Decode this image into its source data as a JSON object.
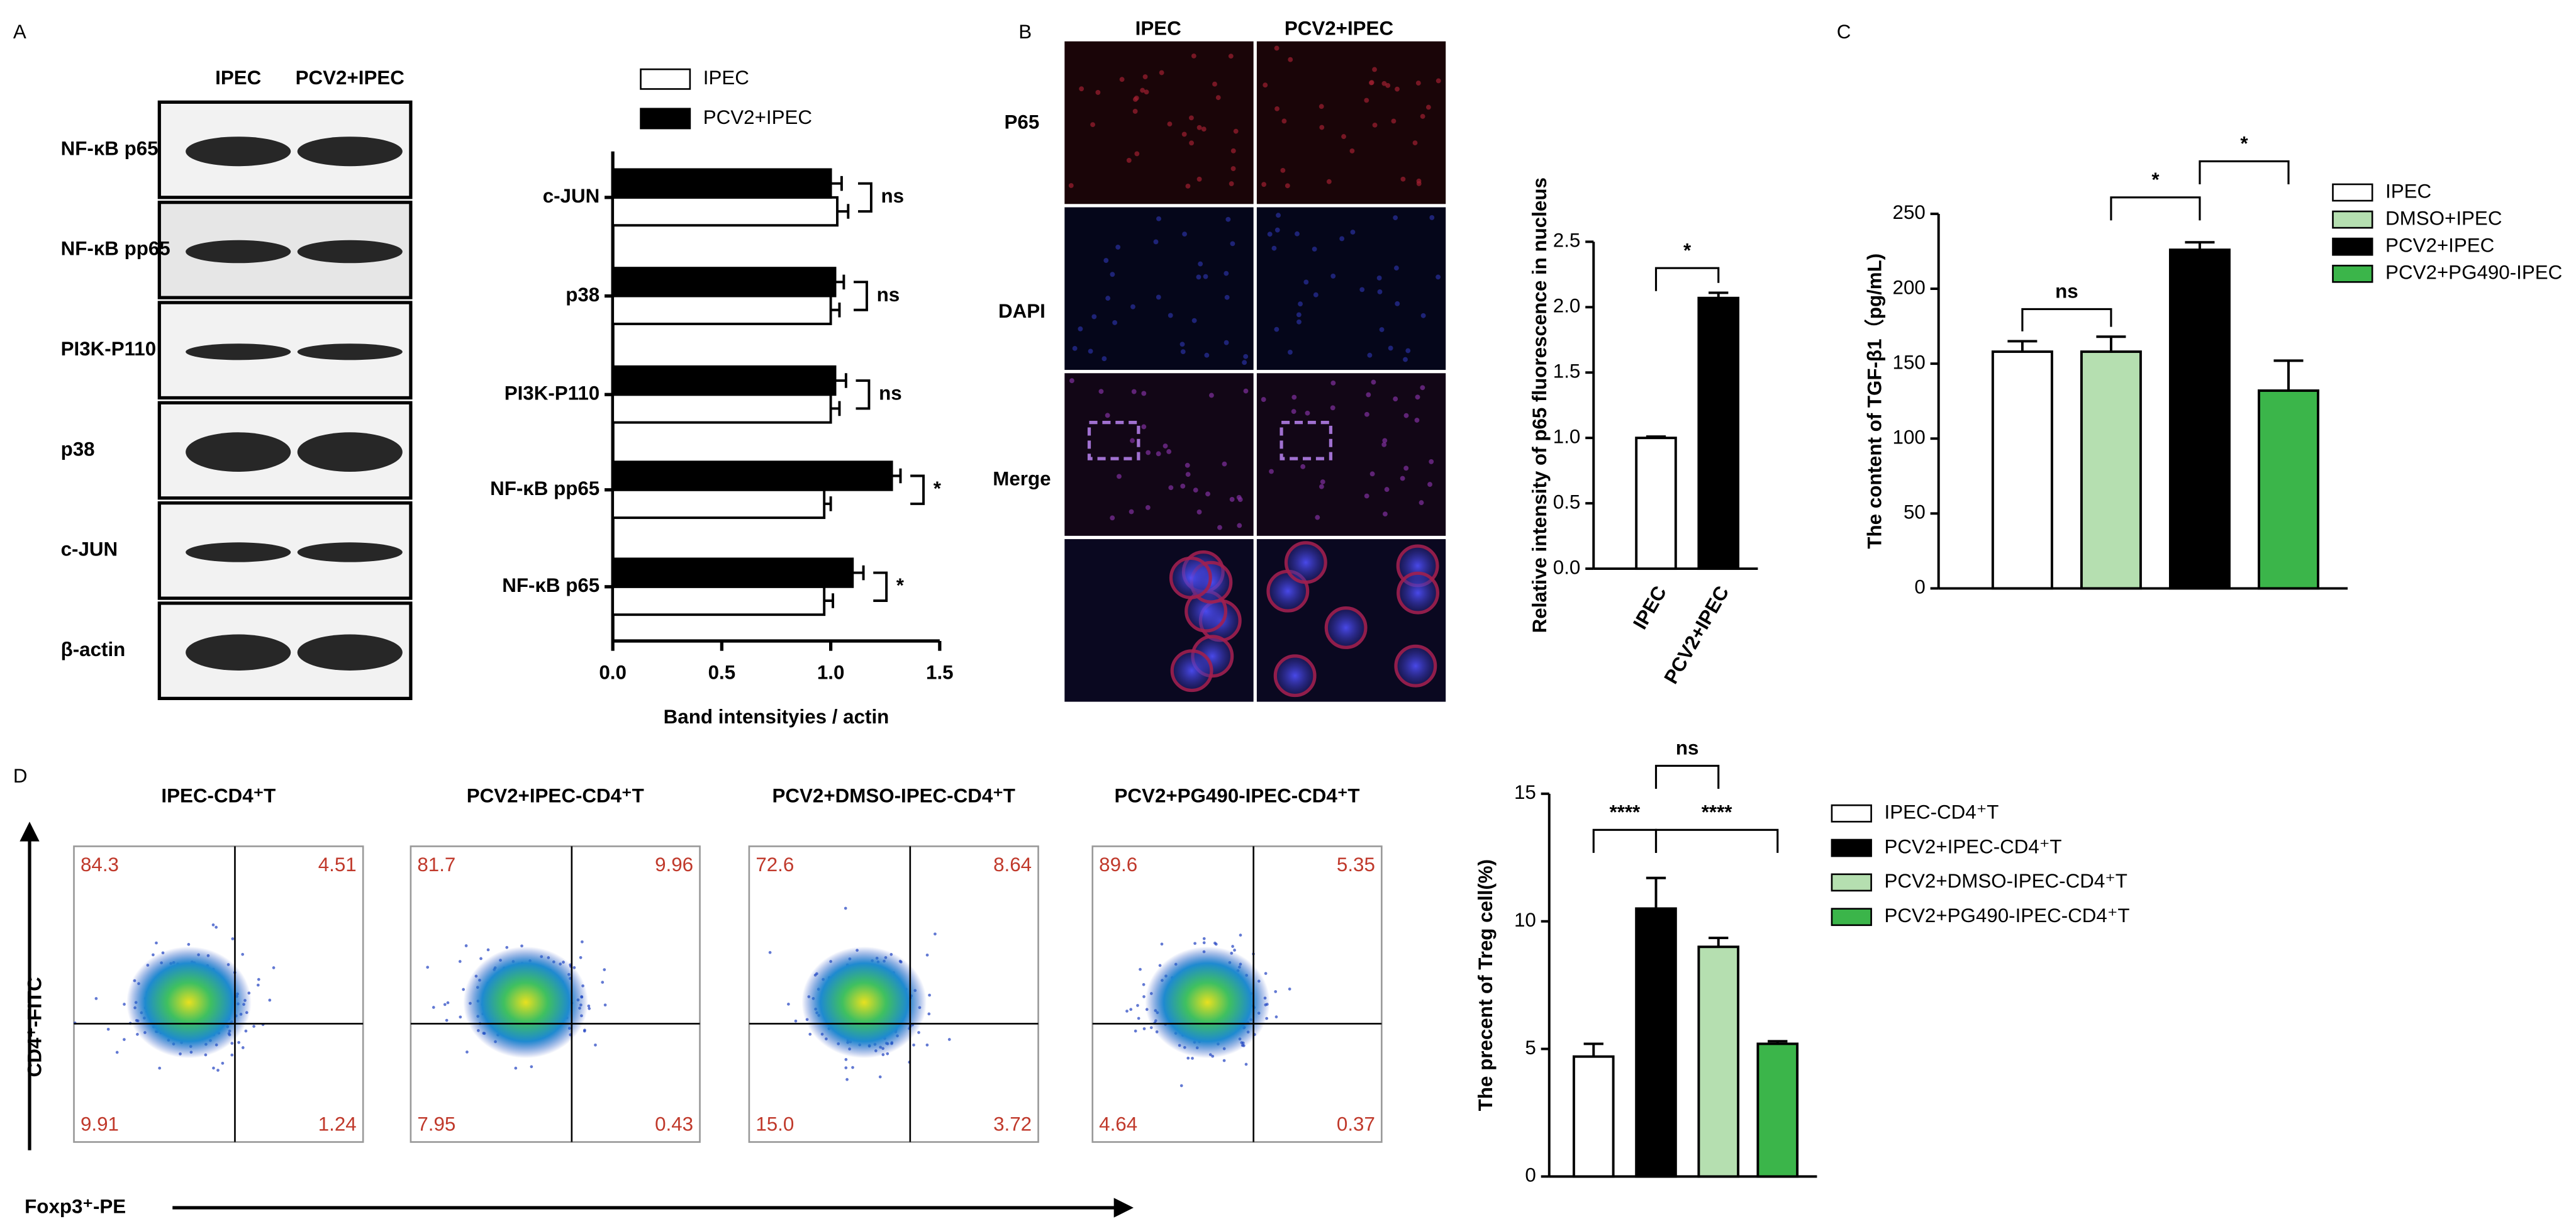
{
  "figure": {
    "panel_labels": [
      "A",
      "B",
      "C",
      "D"
    ],
    "blot": {
      "columns": [
        "IPEC",
        "PCV2+IPEC"
      ],
      "rows": [
        "NF-κB p65",
        "NF-κB pp65",
        "PI3K-P110",
        "p38",
        "c-JUN",
        "β-actin"
      ]
    },
    "micro": {
      "columns": [
        "IPEC",
        "PCV2+IPEC"
      ],
      "rows": [
        "P65",
        "DAPI",
        "Merge"
      ]
    },
    "flow": {
      "ylabel": "CD4⁺-FITC",
      "xlabel": "Foxp3⁺-PE",
      "plots": [
        {
          "title": "IPEC-CD4⁺T",
          "quadrants": [
            "84.3",
            "4.51",
            "9.91",
            "1.24"
          ]
        },
        {
          "title": "PCV2+IPEC-CD4⁺T",
          "quadrants": [
            "81.7",
            "9.96",
            "7.95",
            "0.43"
          ]
        },
        {
          "title": "PCV2+DMSO-IPEC-CD4⁺T",
          "quadrants": [
            "72.6",
            "8.64",
            "15.0",
            "3.72"
          ]
        },
        {
          "title": "PCV2+PG490-IPEC-CD4⁺T",
          "quadrants": [
            "89.6",
            "5.35",
            "4.64",
            "0.37"
          ]
        }
      ]
    }
  },
  "chart_data": [
    {
      "type": "hbar",
      "categories": [
        "c-JUN",
        "p38",
        "PI3K-P110",
        "NF-κB pp65",
        "NF-κB p65"
      ],
      "series": [
        {
          "name": "IPEC",
          "color": "#ffffff",
          "values": [
            1.03,
            1.0,
            1.0,
            0.97,
            0.97
          ],
          "errors": [
            0.05,
            0.04,
            0.04,
            0.03,
            0.04
          ]
        },
        {
          "name": "PCV2+IPEC",
          "color": "#000000",
          "values": [
            1.0,
            1.02,
            1.02,
            1.28,
            1.1
          ],
          "errors": [
            0.05,
            0.04,
            0.05,
            0.04,
            0.05
          ]
        }
      ],
      "xlim": [
        0,
        1.5
      ],
      "xticks": [
        {
          "value": 0,
          "label": "0.0"
        },
        0.5,
        {
          "value": 1,
          "label": "1.0"
        },
        1.5
      ],
      "xlabel": "Band intensityies / actin",
      "annotations": [
        "ns",
        "ns",
        "ns",
        "*",
        "*"
      ]
    },
    {
      "type": "bar",
      "categories": [
        "IPEC",
        "PCV2+IPEC"
      ],
      "values": [
        1.0,
        2.07
      ],
      "errors": [
        0.01,
        0.04
      ],
      "colors": [
        "#ffffff",
        "#000000"
      ],
      "ylim": [
        0,
        2.5
      ],
      "yticks": [
        {
          "value": 0,
          "label": "0.0"
        },
        0.5,
        {
          "value": 1,
          "label": "1.0"
        },
        1.5,
        {
          "value": 2,
          "label": "2.0"
        },
        2.5
      ],
      "ylabel": "Relative intensity of p65 fluorescence in nucleus",
      "annotations": [
        "*"
      ]
    },
    {
      "type": "bar",
      "series": [
        {
          "name": "IPEC",
          "color": "#ffffff",
          "values": [
            158
          ],
          "errors": [
            7
          ]
        },
        {
          "name": "DMSO+IPEC",
          "color": "#b5dfb0",
          "values": [
            158
          ],
          "errors": [
            10
          ]
        },
        {
          "name": "PCV2+IPEC",
          "color": "#000000",
          "values": [
            226
          ],
          "errors": [
            5
          ]
        },
        {
          "name": "PCV2+PG490-IPEC",
          "color": "#3bb54a",
          "values": [
            132
          ],
          "errors": [
            20
          ]
        }
      ],
      "ylim": [
        0,
        250
      ],
      "yticks": [
        0,
        50,
        100,
        150,
        200,
        250
      ],
      "ylabel": "The content of TGF-β1（pg/mL)",
      "annotations": [
        "ns",
        "*",
        "*"
      ]
    },
    {
      "type": "bar",
      "series": [
        {
          "name": "IPEC-CD4⁺T",
          "color": "#ffffff",
          "values": [
            4.7
          ],
          "errors": [
            0.5
          ]
        },
        {
          "name": "PCV2+IPEC-CD4⁺T",
          "color": "#000000",
          "values": [
            10.5
          ],
          "errors": [
            1.2
          ]
        },
        {
          "name": "PCV2+DMSO-IPEC-CD4⁺T",
          "color": "#b5dfb0",
          "values": [
            9.0
          ],
          "errors": [
            0.35
          ]
        },
        {
          "name": "PCV2+PG490-IPEC-CD4⁺T",
          "color": "#3bb54a",
          "values": [
            5.2
          ],
          "errors": [
            0.1
          ]
        }
      ],
      "ylim": [
        0,
        15
      ],
      "yticks": [
        0,
        5,
        10,
        15
      ],
      "ylabel": "The precent of Treg cell(%)",
      "annotations": [
        "****",
        "ns",
        "****"
      ]
    }
  ]
}
